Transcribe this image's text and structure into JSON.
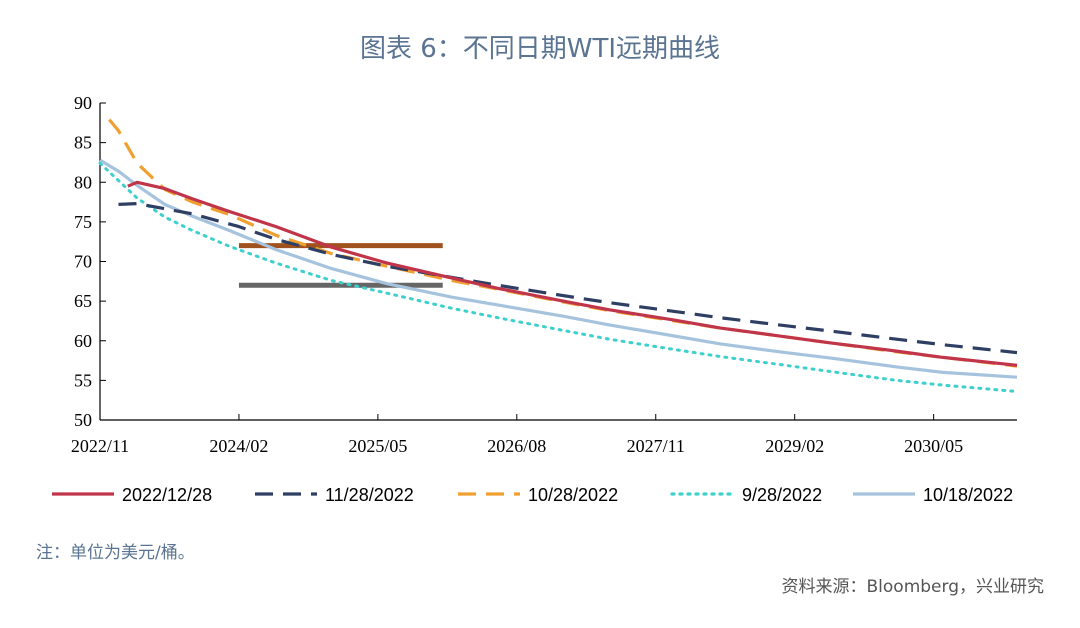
{
  "title": "图表 6：不同日期WTI远期曲线",
  "note": "注：单位为美元/桶。",
  "source": "资料来源：Bloomberg，兴业研究",
  "chart_data": {
    "type": "line",
    "xlabel": "",
    "ylabel": "",
    "ylim": [
      50,
      90
    ],
    "yticks": [
      50,
      55,
      60,
      65,
      70,
      75,
      80,
      85,
      90
    ],
    "xlim": [
      "2022-11",
      "2031-02"
    ],
    "xticks": [
      "2022/11",
      "2024/02",
      "2025/05",
      "2026/08",
      "2027/11",
      "2029/02",
      "2030/05"
    ],
    "grid": false,
    "legend_position": "bottom",
    "series": [
      {
        "name": "2022/12/28",
        "color": "#c0354a",
        "style": "solid",
        "points": [
          [
            "2023-02",
            79.5
          ],
          [
            "2023-03",
            80.0
          ],
          [
            "2023-06",
            79.2
          ],
          [
            "2023-09",
            77.9
          ],
          [
            "2024-01",
            76.3
          ],
          [
            "2024-06",
            74.4
          ],
          [
            "2024-12",
            71.8
          ],
          [
            "2025-06",
            69.8
          ],
          [
            "2026-01",
            67.9
          ],
          [
            "2026-06",
            66.6
          ],
          [
            "2027-01",
            65.0
          ],
          [
            "2027-06",
            63.9
          ],
          [
            "2028-01",
            62.6
          ],
          [
            "2028-06",
            61.6
          ],
          [
            "2029-01",
            60.5
          ],
          [
            "2029-06",
            59.7
          ],
          [
            "2030-01",
            58.7
          ],
          [
            "2030-06",
            57.9
          ],
          [
            "2031-02",
            56.9
          ]
        ]
      },
      {
        "name": "11/28/2022",
        "color": "#2f3f63",
        "style": "dashed",
        "points": [
          [
            "2023-01",
            77.2
          ],
          [
            "2023-03",
            77.3
          ],
          [
            "2023-09",
            76.0
          ],
          [
            "2024-02",
            74.4
          ],
          [
            "2024-06",
            72.8
          ],
          [
            "2024-12",
            70.9
          ],
          [
            "2025-06",
            69.4
          ],
          [
            "2026-01",
            68.0
          ],
          [
            "2026-06",
            67.0
          ],
          [
            "2027-01",
            65.7
          ],
          [
            "2027-06",
            64.8
          ],
          [
            "2028-01",
            63.7
          ],
          [
            "2028-06",
            62.9
          ],
          [
            "2029-01",
            61.9
          ],
          [
            "2029-06",
            61.2
          ],
          [
            "2030-01",
            60.2
          ],
          [
            "2030-06",
            59.5
          ],
          [
            "2031-02",
            58.5
          ]
        ]
      },
      {
        "name": "10/28/2022",
        "color": "#f0a030",
        "style": "dashed",
        "points": [
          [
            "2022-12",
            87.9
          ],
          [
            "2023-01",
            86.5
          ],
          [
            "2023-03",
            82.4
          ],
          [
            "2023-06",
            79.1
          ],
          [
            "2023-09",
            77.5
          ],
          [
            "2024-01",
            75.9
          ],
          [
            "2024-06",
            73.3
          ],
          [
            "2024-12",
            71.0
          ],
          [
            "2025-06",
            69.4
          ],
          [
            "2026-01",
            67.6
          ],
          [
            "2026-06",
            66.5
          ],
          [
            "2027-01",
            64.9
          ],
          [
            "2027-06",
            63.8
          ],
          [
            "2028-01",
            62.5
          ],
          [
            "2028-06",
            61.6
          ],
          [
            "2029-01",
            60.5
          ],
          [
            "2029-06",
            59.7
          ],
          [
            "2030-01",
            58.6
          ],
          [
            "2030-06",
            57.9
          ],
          [
            "2031-02",
            56.8
          ]
        ]
      },
      {
        "name": "9/28/2022",
        "color": "#3ed0cc",
        "style": "dotted",
        "points": [
          [
            "2022-11",
            82.4
          ],
          [
            "2023-03",
            78.0
          ],
          [
            "2023-06",
            75.6
          ],
          [
            "2023-09",
            73.9
          ],
          [
            "2024-01",
            71.9
          ],
          [
            "2024-06",
            69.8
          ],
          [
            "2024-12",
            67.6
          ],
          [
            "2025-06",
            66.0
          ],
          [
            "2026-01",
            64.1
          ],
          [
            "2026-06",
            62.9
          ],
          [
            "2027-01",
            61.3
          ],
          [
            "2027-06",
            60.2
          ],
          [
            "2028-01",
            58.9
          ],
          [
            "2028-06",
            58.0
          ],
          [
            "2029-01",
            56.9
          ],
          [
            "2029-06",
            56.1
          ],
          [
            "2030-01",
            55.0
          ],
          [
            "2030-06",
            54.4
          ],
          [
            "2031-02",
            53.6
          ]
        ]
      },
      {
        "name": "10/18/2022",
        "color": "#a6c3de",
        "style": "solid",
        "points": [
          [
            "2022-11",
            82.8
          ],
          [
            "2023-01",
            81.4
          ],
          [
            "2023-03",
            79.6
          ],
          [
            "2023-06",
            77.2
          ],
          [
            "2023-09",
            75.7
          ],
          [
            "2024-01",
            73.9
          ],
          [
            "2024-06",
            71.5
          ],
          [
            "2024-12",
            69.1
          ],
          [
            "2025-06",
            67.2
          ],
          [
            "2026-01",
            65.5
          ],
          [
            "2026-06",
            64.5
          ],
          [
            "2027-01",
            63.1
          ],
          [
            "2027-06",
            62.0
          ],
          [
            "2028-01",
            60.6
          ],
          [
            "2028-06",
            59.6
          ],
          [
            "2029-01",
            58.5
          ],
          [
            "2029-06",
            57.8
          ],
          [
            "2030-01",
            56.7
          ],
          [
            "2030-06",
            56.0
          ],
          [
            "2031-02",
            55.4
          ]
        ]
      }
    ],
    "reference_lines": [
      {
        "y": 72,
        "x_start": "2024-02",
        "x_end": "2025-12",
        "color": "#a0521e"
      },
      {
        "y": 67,
        "x_start": "2024-02",
        "x_end": "2025-12",
        "color": "#666666"
      }
    ]
  }
}
